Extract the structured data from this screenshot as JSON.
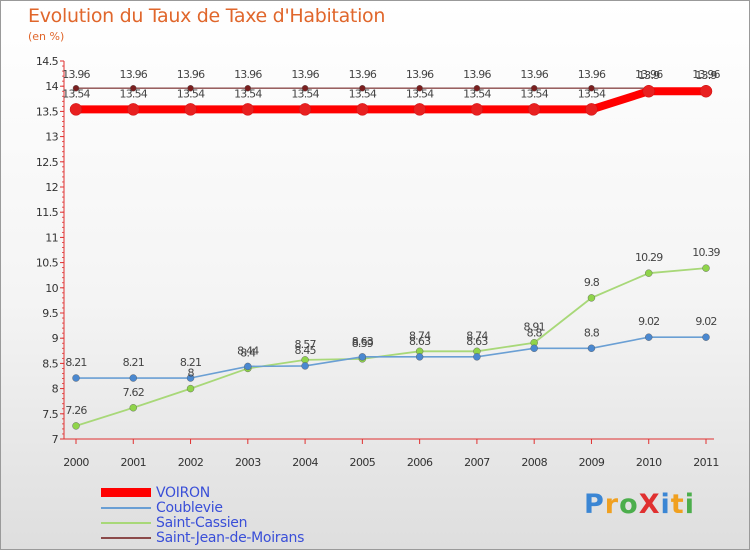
{
  "chart_data": {
    "type": "line",
    "title": "Evolution du Taux de Taxe d'Habitation",
    "unit_label": "(en %)",
    "categories": [
      "2000",
      "2001",
      "2002",
      "2003",
      "2004",
      "2005",
      "2006",
      "2007",
      "2008",
      "2009",
      "2010",
      "2011"
    ],
    "ylim": [
      7,
      14.5
    ],
    "yticks": [
      "7",
      "7.5",
      "8",
      "8.5",
      "9",
      "9.5",
      "10",
      "10.5",
      "11",
      "11.5",
      "12",
      "12.5",
      "13",
      "13.5",
      "14",
      "14.5"
    ],
    "grid": false,
    "legend_position": "bottom-left",
    "series": [
      {
        "name": "VOIRON",
        "color": "#ff0000",
        "values": [
          13.54,
          13.54,
          13.54,
          13.54,
          13.54,
          13.54,
          13.54,
          13.54,
          13.54,
          13.54,
          13.9,
          13.9
        ],
        "labels": [
          "13.54",
          "13.54",
          "13.54",
          "13.54",
          "13.54",
          "13.54",
          "13.54",
          "13.54",
          "13.54",
          "13.54",
          "13.9",
          "13.9"
        ]
      },
      {
        "name": "Coublevie",
        "color": "#6a9fd4",
        "values": [
          8.21,
          8.21,
          8.21,
          8.44,
          8.45,
          8.63,
          8.63,
          8.63,
          8.8,
          8.8,
          9.02,
          9.02
        ],
        "labels": [
          "8.21",
          "8.21",
          "8.21",
          "8.44",
          "8.45",
          "8.63",
          "8.63",
          "8.63",
          "8.8",
          "8.8",
          "9.02",
          "9.02"
        ]
      },
      {
        "name": "Saint-Cassien",
        "color": "#a8d878",
        "values": [
          7.26,
          7.62,
          8,
          8.4,
          8.57,
          8.59,
          8.74,
          8.74,
          8.91,
          9.8,
          10.29,
          10.39
        ],
        "labels": [
          "7.26",
          "7.62",
          "8",
          "8.4",
          "8.57",
          "8.59",
          "8.74",
          "8.74",
          "8.91",
          "9.8",
          "10.29",
          "10.39"
        ]
      },
      {
        "name": "Saint-Jean-de-Moirans",
        "color": "#8b4a4a",
        "values": [
          13.96,
          13.96,
          13.96,
          13.96,
          13.96,
          13.96,
          13.96,
          13.96,
          13.96,
          13.96,
          13.96,
          13.96
        ],
        "labels": [
          "13.96",
          "13.96",
          "13.96",
          "13.96",
          "13.96",
          "13.96",
          "13.96",
          "13.96",
          "13.96",
          "13.96",
          "13.96",
          "13.96"
        ]
      }
    ]
  },
  "brand": {
    "text": "ProXiti",
    "letters": [
      {
        "ch": "P",
        "color": "#3b86d4"
      },
      {
        "ch": "r",
        "color": "#f0a020"
      },
      {
        "ch": "o",
        "color": "#4cae4c"
      },
      {
        "ch": "X",
        "color": "#e03030"
      },
      {
        "ch": "i",
        "color": "#3b86d4"
      },
      {
        "ch": "t",
        "color": "#f0a020"
      },
      {
        "ch": "i",
        "color": "#4cae4c"
      }
    ]
  }
}
